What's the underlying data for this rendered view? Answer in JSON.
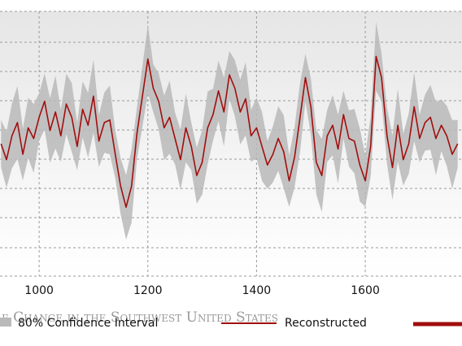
{
  "chart_data": {
    "type": "line",
    "xlim": [
      928,
      1778
    ],
    "ylim": [
      0,
      10
    ],
    "grid": true,
    "x_ticks": [
      1000,
      1200,
      1400,
      1600
    ],
    "legend_placement": "bottom",
    "colors": {
      "reconstructed": "#a10e0e",
      "confidence": "#b9b9b9",
      "grid": "#9a9a9a",
      "plot_background_top": "#e6e6e6",
      "plot_background_bottom": "#ffffff"
    },
    "watermark": "e Change in the Southwest United States",
    "legend": [
      {
        "name": "80% Confidence Interval",
        "kind": "band",
        "color": "#b9b9b9"
      },
      {
        "name": "Reconstructed",
        "kind": "line",
        "color": "#a10e0e"
      },
      {
        "name": "",
        "kind": "line-thick",
        "color": "#a10e0e"
      }
    ],
    "series": [
      {
        "name": "Reconstructed",
        "x": [
          930,
          940,
          950,
          960,
          970,
          980,
          990,
          1000,
          1010,
          1020,
          1030,
          1040,
          1050,
          1060,
          1070,
          1080,
          1090,
          1100,
          1110,
          1120,
          1130,
          1140,
          1150,
          1160,
          1170,
          1180,
          1190,
          1200,
          1210,
          1220,
          1230,
          1240,
          1250,
          1260,
          1270,
          1280,
          1290,
          1300,
          1310,
          1320,
          1330,
          1340,
          1350,
          1360,
          1370,
          1380,
          1390,
          1400,
          1410,
          1420,
          1430,
          1440,
          1450,
          1460,
          1470,
          1480,
          1490,
          1500,
          1510,
          1520,
          1530,
          1540,
          1550,
          1560,
          1570,
          1580,
          1590,
          1600,
          1610,
          1620,
          1630,
          1640,
          1650,
          1660,
          1670,
          1680,
          1690,
          1700,
          1710,
          1720,
          1730,
          1740,
          1750,
          1760,
          1770
        ],
        "y": [
          5.0,
          4.4,
          5.3,
          5.8,
          4.6,
          5.6,
          5.2,
          6.0,
          6.6,
          5.5,
          6.2,
          5.3,
          6.5,
          6.0,
          4.9,
          6.3,
          5.7,
          6.8,
          5.1,
          5.8,
          5.9,
          4.6,
          3.4,
          2.6,
          3.4,
          5.4,
          6.8,
          8.2,
          7.1,
          6.6,
          5.6,
          6.0,
          5.2,
          4.4,
          5.6,
          4.9,
          3.8,
          4.3,
          5.6,
          6.1,
          7.0,
          6.2,
          7.6,
          7.1,
          6.2,
          6.7,
          5.3,
          5.6,
          4.9,
          4.2,
          4.6,
          5.2,
          4.7,
          3.6,
          4.5,
          6.0,
          7.5,
          6.4,
          4.3,
          3.8,
          5.3,
          5.7,
          4.8,
          6.1,
          5.2,
          5.1,
          4.2,
          3.6,
          4.9,
          8.3,
          7.5,
          5.3,
          4.1,
          5.7,
          4.4,
          5.0,
          6.4,
          5.2,
          5.8,
          6.0,
          5.2,
          5.7,
          5.3,
          4.6,
          5.0
        ],
        "ci_half_width": 0.9
      }
    ]
  }
}
